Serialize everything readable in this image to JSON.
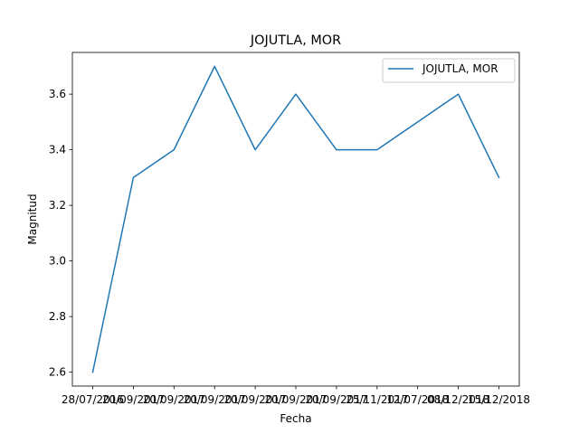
{
  "chart_data": {
    "type": "line",
    "title": "JOJUTLA, MOR",
    "xlabel": "Fecha",
    "ylabel": "Magnitud",
    "categories": [
      "28/07/2016",
      "20/09/2017",
      "20/09/2017",
      "20/09/2017",
      "20/09/2017",
      "20/09/2017",
      "20/09/2017",
      "25/11/2017",
      "12/07/2018",
      "08/12/2018",
      "15/12/2018"
    ],
    "series": [
      {
        "name": "JOJUTLA, MOR",
        "color": "#1f77b4",
        "values": [
          2.6,
          3.3,
          3.4,
          3.7,
          3.4,
          3.6,
          3.4,
          3.4,
          3.5,
          3.6,
          3.3
        ]
      }
    ],
    "ylim": [
      2.55,
      3.75
    ],
    "yticks": [
      2.6,
      2.8,
      3.0,
      3.2,
      3.4,
      3.6
    ],
    "ytick_labels": [
      "2.6",
      "2.8",
      "3.0",
      "3.2",
      "3.4",
      "3.6"
    ],
    "grid": false,
    "legend": "upper right"
  }
}
